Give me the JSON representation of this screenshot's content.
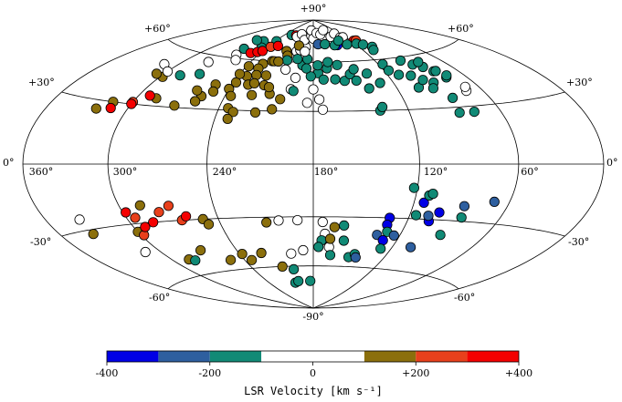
{
  "chart_data": {
    "type": "scatter",
    "projection": "hammer-aitoff, galactic coordinates, centered on l=180",
    "title": "",
    "colorbar": {
      "label": "LSR Velocity [km s⁻¹]",
      "range": [
        -400,
        400
      ],
      "bins": [
        -400,
        -300,
        -200,
        -100,
        0,
        100,
        200,
        300,
        400
      ],
      "colors": [
        "#0000e6",
        "#2e5f9f",
        "#118a76",
        "#ffffff",
        "#ffffff",
        "#8b6f0c",
        "#e8401c",
        "#f40000"
      ],
      "tick_labels": [
        "-400",
        "-200",
        "0",
        "+200",
        "+400"
      ]
    },
    "longitude_labels": [
      "360°",
      "300°",
      "240°",
      "180°",
      "120°",
      "60°",
      "0°"
    ],
    "latitude_labels": {
      "north_pole": "+90°",
      "south_pole": "-90°",
      "p60": "+60°",
      "p30": "+30°",
      "zero": "0°",
      "m30": "-30°",
      "m60": "-60°"
    },
    "points": [
      {
        "l": 256,
        "b": 72,
        "v": -150
      },
      {
        "l": 246,
        "b": 68,
        "v": -150
      },
      {
        "l": 238,
        "b": 73,
        "v": -150
      },
      {
        "l": 226,
        "b": 78,
        "v": -150
      },
      {
        "l": 264,
        "b": 66,
        "v": -150
      },
      {
        "l": 286,
        "b": 47,
        "v": -150
      },
      {
        "l": 272,
        "b": 49,
        "v": -150
      },
      {
        "l": 268,
        "b": 72,
        "v": -150
      },
      {
        "l": 262,
        "b": 62,
        "v": 20
      },
      {
        "l": 256,
        "b": 59,
        "v": 20
      },
      {
        "l": 250,
        "b": 64,
        "v": 350
      },
      {
        "l": 244,
        "b": 65,
        "v": 350
      },
      {
        "l": 240,
        "b": 66,
        "v": 350
      },
      {
        "l": 236,
        "b": 69,
        "v": 250
      },
      {
        "l": 228,
        "b": 70,
        "v": 350
      },
      {
        "l": 216,
        "b": 78,
        "v": 350
      },
      {
        "l": 212,
        "b": 77,
        "v": 20
      },
      {
        "l": 206,
        "b": 79,
        "v": 20
      },
      {
        "l": 200,
        "b": 67,
        "v": 20
      },
      {
        "l": 196,
        "b": 68,
        "v": 20
      },
      {
        "l": 193,
        "b": 72,
        "v": 20
      },
      {
        "l": 190,
        "b": 70,
        "v": 20
      },
      {
        "l": 195,
        "b": 75,
        "v": 20
      },
      {
        "l": 184,
        "b": 78,
        "v": 20
      },
      {
        "l": 186,
        "b": 82,
        "v": 20
      },
      {
        "l": 180,
        "b": 76,
        "v": 20
      },
      {
        "l": 172,
        "b": 80,
        "v": 20
      },
      {
        "l": 164,
        "b": 79,
        "v": 20
      },
      {
        "l": 150,
        "b": 82,
        "v": 20
      },
      {
        "l": 146,
        "b": 77,
        "v": 20
      },
      {
        "l": 132,
        "b": 79,
        "v": 20
      },
      {
        "l": 130,
        "b": 76,
        "v": 20
      },
      {
        "l": 125,
        "b": 76,
        "v": 20
      },
      {
        "l": 72,
        "b": 38,
        "v": 20
      },
      {
        "l": 70,
        "b": 40,
        "v": 20
      },
      {
        "l": 116,
        "b": 73,
        "v": 350
      },
      {
        "l": 112,
        "b": 73,
        "v": 250
      },
      {
        "l": 173,
        "b": 72,
        "v": -250
      },
      {
        "l": 146,
        "b": 71,
        "v": -350
      },
      {
        "l": 150,
        "b": 71,
        "v": -150
      },
      {
        "l": 163,
        "b": 72,
        "v": -150
      },
      {
        "l": 139,
        "b": 74,
        "v": -150
      },
      {
        "l": 132,
        "b": 71,
        "v": -150
      },
      {
        "l": 118,
        "b": 71,
        "v": -150
      },
      {
        "l": 104,
        "b": 68,
        "v": -150
      },
      {
        "l": 111,
        "b": 70,
        "v": -150
      },
      {
        "l": 108,
        "b": 66,
        "v": -150
      },
      {
        "l": 96,
        "b": 58,
        "v": -150
      },
      {
        "l": 90,
        "b": 55,
        "v": -150
      },
      {
        "l": 84,
        "b": 53,
        "v": -150
      },
      {
        "l": 80,
        "b": 50,
        "v": -150
      },
      {
        "l": 76,
        "b": 46,
        "v": -150
      },
      {
        "l": 82,
        "b": 56,
        "v": -150
      },
      {
        "l": 78,
        "b": 50,
        "v": -150
      },
      {
        "l": 74,
        "b": 47,
        "v": -150
      },
      {
        "l": 238,
        "b": 56,
        "v": 150
      },
      {
        "l": 227,
        "b": 58,
        "v": 150
      },
      {
        "l": 220,
        "b": 60,
        "v": 150
      },
      {
        "l": 212,
        "b": 67,
        "v": 150
      },
      {
        "l": 208,
        "b": 64,
        "v": 150
      },
      {
        "l": 206,
        "b": 61,
        "v": -150
      },
      {
        "l": 218,
        "b": 60,
        "v": 150
      },
      {
        "l": 214,
        "b": 60,
        "v": 150
      },
      {
        "l": 228,
        "b": 55,
        "v": 150
      },
      {
        "l": 226,
        "b": 51,
        "v": 150
      },
      {
        "l": 233,
        "b": 50,
        "v": 150
      },
      {
        "l": 238,
        "b": 46,
        "v": 150
      },
      {
        "l": 240,
        "b": 42,
        "v": 150
      },
      {
        "l": 236,
        "b": 38,
        "v": 150
      },
      {
        "l": 228,
        "b": 45,
        "v": 150
      },
      {
        "l": 224,
        "b": 46,
        "v": 150
      },
      {
        "l": 234,
        "b": 31,
        "v": 150
      },
      {
        "l": 230,
        "b": 29,
        "v": 150
      },
      {
        "l": 232,
        "b": 25,
        "v": 150
      },
      {
        "l": 216,
        "b": 45,
        "v": 150
      },
      {
        "l": 210,
        "b": 40,
        "v": 150
      },
      {
        "l": 216,
        "b": 29,
        "v": 150
      },
      {
        "l": 206,
        "b": 31,
        "v": 150
      },
      {
        "l": 202,
        "b": 37,
        "v": 150
      },
      {
        "l": 222,
        "b": 39,
        "v": 150
      },
      {
        "l": 212,
        "b": 44,
        "v": 150
      },
      {
        "l": 218,
        "b": 51,
        "v": 150
      },
      {
        "l": 204,
        "b": 55,
        "v": 20
      },
      {
        "l": 194,
        "b": 50,
        "v": 20
      },
      {
        "l": 196,
        "b": 43,
        "v": 20
      },
      {
        "l": 184,
        "b": 35,
        "v": 20
      },
      {
        "l": 190,
        "b": 58,
        "v": -150
      },
      {
        "l": 196,
        "b": 62,
        "v": -150
      },
      {
        "l": 186,
        "b": 62,
        "v": -150
      },
      {
        "l": 194,
        "b": 42,
        "v": -150
      },
      {
        "l": 176,
        "b": 53,
        "v": -150
      },
      {
        "l": 168,
        "b": 56,
        "v": -150
      },
      {
        "l": 176,
        "b": 58,
        "v": -150
      },
      {
        "l": 166,
        "b": 60,
        "v": -150
      },
      {
        "l": 163,
        "b": 49,
        "v": -150
      },
      {
        "l": 172,
        "b": 49,
        "v": -150
      },
      {
        "l": 182,
        "b": 51,
        "v": -150
      },
      {
        "l": 186,
        "b": 56,
        "v": -150
      },
      {
        "l": 158,
        "b": 58,
        "v": -150
      },
      {
        "l": 156,
        "b": 48,
        "v": -150
      },
      {
        "l": 150,
        "b": 52,
        "v": -150
      },
      {
        "l": 145,
        "b": 55,
        "v": -150
      },
      {
        "l": 147,
        "b": 48,
        "v": -150
      },
      {
        "l": 140,
        "b": 43,
        "v": -150
      },
      {
        "l": 136,
        "b": 52,
        "v": -150
      },
      {
        "l": 130,
        "b": 46,
        "v": -150
      },
      {
        "l": 116,
        "b": 57,
        "v": -150
      },
      {
        "l": 116,
        "b": 53,
        "v": -150
      },
      {
        "l": 111,
        "b": 50,
        "v": -150
      },
      {
        "l": 102,
        "b": 49,
        "v": -150
      },
      {
        "l": 104,
        "b": 42,
        "v": -150
      },
      {
        "l": 96,
        "b": 46,
        "v": -150
      },
      {
        "l": 90,
        "b": 44,
        "v": -150
      },
      {
        "l": 94,
        "b": 41,
        "v": -150
      },
      {
        "l": 86,
        "b": 35,
        "v": -150
      },
      {
        "l": 88,
        "b": 27,
        "v": -150
      },
      {
        "l": 78,
        "b": 27,
        "v": -150
      },
      {
        "l": 138,
        "b": 30,
        "v": -150
      },
      {
        "l": 136,
        "b": 32,
        "v": -150
      },
      {
        "l": 180,
        "b": 43,
        "v": 20
      },
      {
        "l": 174,
        "b": 31,
        "v": 20
      },
      {
        "l": 176,
        "b": 37,
        "v": 20
      },
      {
        "l": 200,
        "b": 71,
        "v": 150
      },
      {
        "l": 190,
        "b": 67,
        "v": 20
      },
      {
        "l": 240,
        "b": 51,
        "v": 150
      },
      {
        "l": 298,
        "b": 45,
        "v": 150
      },
      {
        "l": 306,
        "b": 46,
        "v": 150
      },
      {
        "l": 286,
        "b": 34,
        "v": 150
      },
      {
        "l": 314,
        "b": 30,
        "v": 150
      },
      {
        "l": 258,
        "b": 34,
        "v": 150
      },
      {
        "l": 278,
        "b": 56,
        "v": 20
      },
      {
        "l": 300,
        "b": 31,
        "v": 250
      },
      {
        "l": 322,
        "b": 26,
        "v": 150
      },
      {
        "l": 312,
        "b": 27,
        "v": 350
      },
      {
        "l": 292,
        "b": 35,
        "v": 350
      },
      {
        "l": 300,
        "b": 30,
        "v": 350
      },
      {
        "l": 270,
        "b": 31,
        "v": 150
      },
      {
        "l": 256,
        "b": 37,
        "v": 150
      },
      {
        "l": 262,
        "b": 40,
        "v": 150
      },
      {
        "l": 258,
        "b": 34,
        "v": 150
      },
      {
        "l": 312,
        "b": 51,
        "v": 20
      },
      {
        "l": 300,
        "b": 48,
        "v": 20
      },
      {
        "l": 252,
        "b": 44,
        "v": 150
      },
      {
        "l": 250,
        "b": 40,
        "v": 150
      },
      {
        "l": 334,
        "b": -25,
        "v": 20
      },
      {
        "l": 334,
        "b": -32,
        "v": 150
      },
      {
        "l": 312,
        "b": -44,
        "v": 20
      },
      {
        "l": 298,
        "b": -24,
        "v": 350
      },
      {
        "l": 294,
        "b": -27,
        "v": 250
      },
      {
        "l": 286,
        "b": -21,
        "v": 150
      },
      {
        "l": 284,
        "b": -30,
        "v": 350
      },
      {
        "l": 276,
        "b": -25,
        "v": 250
      },
      {
        "l": 268,
        "b": -22,
        "v": 250
      },
      {
        "l": 264,
        "b": -30,
        "v": 250
      },
      {
        "l": 260,
        "b": -28,
        "v": 350
      },
      {
        "l": 250,
        "b": -30,
        "v": 150
      },
      {
        "l": 248,
        "b": -33,
        "v": 150
      },
      {
        "l": 300,
        "b": -34,
        "v": 150
      },
      {
        "l": 298,
        "b": -36,
        "v": 250
      },
      {
        "l": 292,
        "b": -32,
        "v": 350
      },
      {
        "l": 286,
        "b": -51,
        "v": 150
      },
      {
        "l": 282,
        "b": -52,
        "v": -150
      },
      {
        "l": 268,
        "b": -47,
        "v": 150
      },
      {
        "l": 252,
        "b": -54,
        "v": 150
      },
      {
        "l": 234,
        "b": -55,
        "v": 150
      },
      {
        "l": 238,
        "b": -51,
        "v": 150
      },
      {
        "l": 222,
        "b": -51,
        "v": 150
      },
      {
        "l": 210,
        "b": -60,
        "v": 150
      },
      {
        "l": 205,
        "b": -71,
        "v": -150
      },
      {
        "l": 200,
        "b": -70,
        "v": -150
      },
      {
        "l": 200,
        "b": -62,
        "v": -150
      },
      {
        "l": 184,
        "b": -70,
        "v": -150
      },
      {
        "l": 210,
        "b": -33,
        "v": 150
      },
      {
        "l": 202,
        "b": -32,
        "v": 20
      },
      {
        "l": 198,
        "b": -52,
        "v": 20
      },
      {
        "l": 188,
        "b": -50,
        "v": 20
      },
      {
        "l": 190,
        "b": -32,
        "v": 20
      },
      {
        "l": 174,
        "b": -33,
        "v": 20
      },
      {
        "l": 172,
        "b": -40,
        "v": 20
      },
      {
        "l": 168,
        "b": -48,
        "v": 20
      },
      {
        "l": 174,
        "b": -44,
        "v": -150
      },
      {
        "l": 176,
        "b": -48,
        "v": -150
      },
      {
        "l": 166,
        "b": -53,
        "v": -150
      },
      {
        "l": 168,
        "b": -43,
        "v": 150
      },
      {
        "l": 160,
        "b": -35,
        "v": -150
      },
      {
        "l": 158,
        "b": -44,
        "v": -150
      },
      {
        "l": 166,
        "b": -36,
        "v": 150
      },
      {
        "l": 150,
        "b": -54,
        "v": -150
      },
      {
        "l": 146,
        "b": -52,
        "v": -150
      },
      {
        "l": 144,
        "b": -54,
        "v": -250
      },
      {
        "l": 136,
        "b": -40,
        "v": -250
      },
      {
        "l": 132,
        "b": -30,
        "v": -350
      },
      {
        "l": 132,
        "b": -34,
        "v": -350
      },
      {
        "l": 130,
        "b": -38,
        "v": -150
      },
      {
        "l": 130,
        "b": -43,
        "v": -350
      },
      {
        "l": 124,
        "b": -40,
        "v": -250
      },
      {
        "l": 116,
        "b": -28,
        "v": -150
      },
      {
        "l": 114,
        "b": -21,
        "v": -350
      },
      {
        "l": 112,
        "b": -17,
        "v": -150
      },
      {
        "l": 110,
        "b": -16,
        "v": -150
      },
      {
        "l": 122,
        "b": -13,
        "v": -150
      },
      {
        "l": 106,
        "b": -31,
        "v": -350
      },
      {
        "l": 108,
        "b": -28,
        "v": -250
      },
      {
        "l": 102,
        "b": -26,
        "v": -350
      },
      {
        "l": 88,
        "b": -22,
        "v": -250
      },
      {
        "l": 70,
        "b": -19,
        "v": -250
      },
      {
        "l": 86,
        "b": -28,
        "v": -150
      },
      {
        "l": 92,
        "b": -38,
        "v": -150
      },
      {
        "l": 106,
        "b": -46,
        "v": -250
      },
      {
        "l": 128,
        "b": -48,
        "v": -150
      }
    ]
  }
}
